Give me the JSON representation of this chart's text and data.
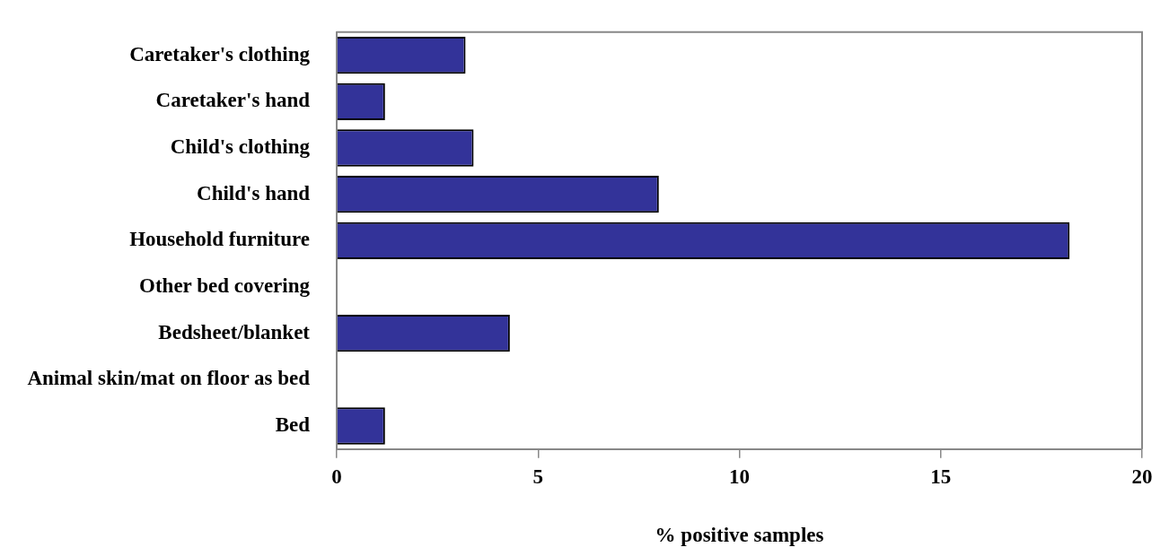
{
  "chart_data": {
    "type": "bar",
    "orientation": "horizontal",
    "xlabel": "% positive samples",
    "categories": [
      "Caretaker's clothing",
      "Caretaker's hand",
      "Child's clothing",
      "Child's hand",
      "Household furniture",
      "Other bed covering",
      "Bedsheet/blanket",
      "Animal skin/mat on floor as bed",
      "Bed"
    ],
    "values": [
      3.2,
      1.2,
      3.4,
      8.0,
      18.2,
      0,
      4.3,
      0,
      1.2
    ],
    "color": "#333399",
    "xlim": [
      0,
      20
    ],
    "xticks": [
      0,
      5,
      10,
      15,
      20
    ],
    "grid": false,
    "legend": false
  }
}
